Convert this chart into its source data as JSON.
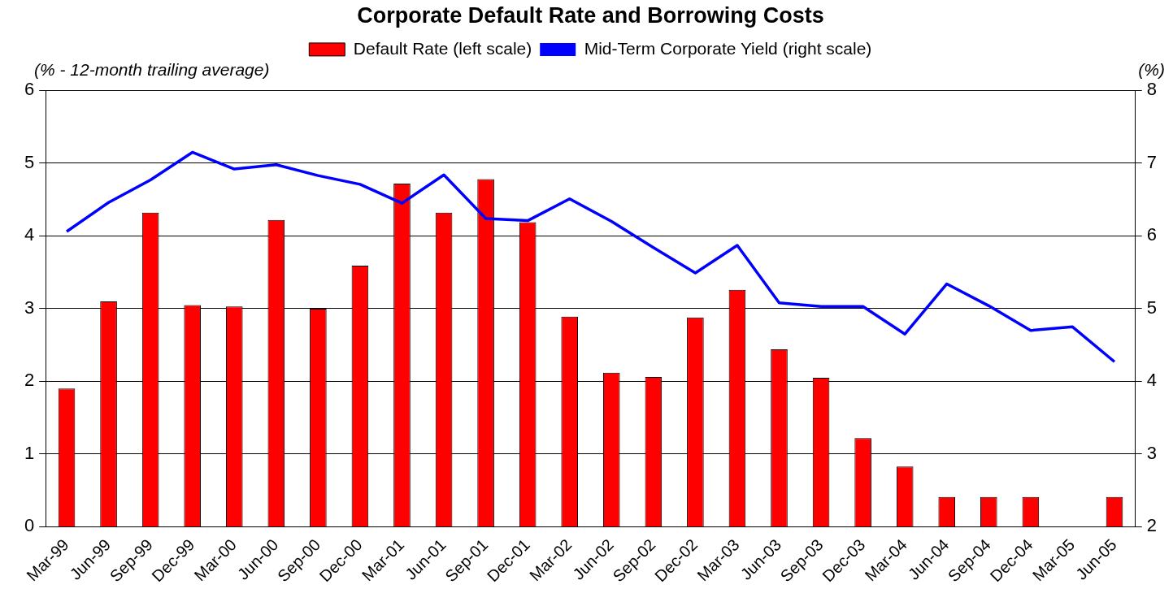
{
  "chart_data": {
    "type": "bar",
    "title": "Corporate Default Rate and Borrowing Costs",
    "ylabel": "(% - 12-month trailing average)",
    "y2label": "(%)",
    "categories": [
      "Mar-99",
      "Jun-99",
      "Sep-99",
      "Dec-99",
      "Mar-00",
      "Jun-00",
      "Sep-00",
      "Dec-00",
      "Mar-01",
      "Jun-01",
      "Sep-01",
      "Dec-01",
      "Mar-02",
      "Jun-02",
      "Sep-02",
      "Dec-02",
      "Mar-03",
      "Jun-03",
      "Sep-03",
      "Dec-03",
      "Mar-04",
      "Jun-04",
      "Sep-04",
      "Dec-04",
      "Mar-05",
      "Jun-05"
    ],
    "series": [
      {
        "name": "Default Rate (left scale)",
        "color": "#ff0000",
        "values": [
          1.9,
          3.1,
          4.32,
          3.05,
          3.03,
          4.22,
          3.0,
          3.59,
          4.72,
          4.32,
          4.78,
          4.19,
          2.89,
          2.12,
          2.06,
          2.88,
          3.26,
          2.44,
          2.05,
          1.22,
          0.83,
          0.41,
          0.41,
          0.41,
          null,
          0.41
        ]
      },
      {
        "name": "Mid-Term Corporate Yield (right scale)",
        "type": "line",
        "axis": "y2",
        "color": "#0000ff",
        "values": [
          6.06,
          6.46,
          6.77,
          7.15,
          6.92,
          6.98,
          6.83,
          6.71,
          6.45,
          6.84,
          6.24,
          6.21,
          6.51,
          6.2,
          5.84,
          5.49,
          5.87,
          5.08,
          5.03,
          5.03,
          4.65,
          5.34,
          5.04,
          4.7,
          4.75,
          4.27
        ]
      }
    ],
    "ylim": [
      0,
      6
    ],
    "yticks": [
      0,
      1,
      2,
      3,
      4,
      5,
      6
    ],
    "y2lim": [
      2,
      8
    ],
    "y2ticks": [
      2,
      3,
      4,
      5,
      6,
      7,
      8
    ],
    "grid": "y",
    "legend": "top",
    "marker": "none",
    "line_style": "solid"
  }
}
